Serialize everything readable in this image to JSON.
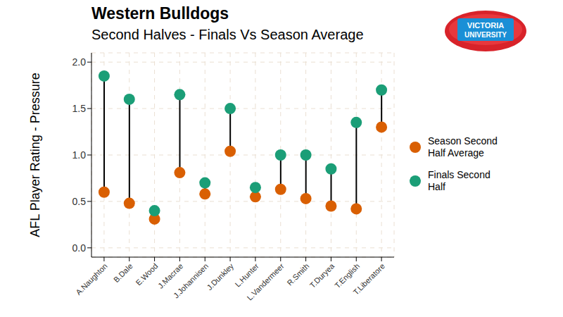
{
  "chart_data": {
    "type": "dumbbell",
    "title": "Western Bulldogs",
    "subtitle": "Second Halves - Finals Vs Season Average",
    "y_label": "AFL Player Rating - Pressure",
    "logo_text": [
      "VICTORIA",
      "UNIVERSITY"
    ],
    "categories": [
      "A.Naughton",
      "B.Dale",
      "E.Wood",
      "J.Macrae",
      "J.Johannisen",
      "J.Dunkley",
      "L.Hunter",
      "L.Vandermeer",
      "R.Smith",
      "T.Duryea",
      "T.English",
      "T.Liberatore"
    ],
    "series": [
      {
        "name": "Season Second Half Average",
        "color": "#D95F02",
        "values": [
          0.6,
          0.48,
          0.31,
          0.81,
          0.58,
          1.04,
          0.55,
          0.63,
          0.53,
          0.45,
          0.42,
          1.3
        ]
      },
      {
        "name": "Finals Second Half",
        "color": "#1B9E77",
        "values": [
          1.85,
          1.6,
          0.4,
          1.65,
          0.7,
          1.5,
          0.65,
          1.0,
          1.0,
          0.85,
          1.35,
          1.7
        ]
      }
    ],
    "ylim": [
      -0.1,
      2.1
    ],
    "yticks": [
      {
        "value": 0,
        "label": "0.0"
      },
      0.5,
      {
        "value": 1,
        "label": "1.0"
      },
      1.5,
      {
        "value": 2,
        "label": "2.0"
      }
    ],
    "grid": true,
    "legend": "right",
    "marker": "circle"
  }
}
